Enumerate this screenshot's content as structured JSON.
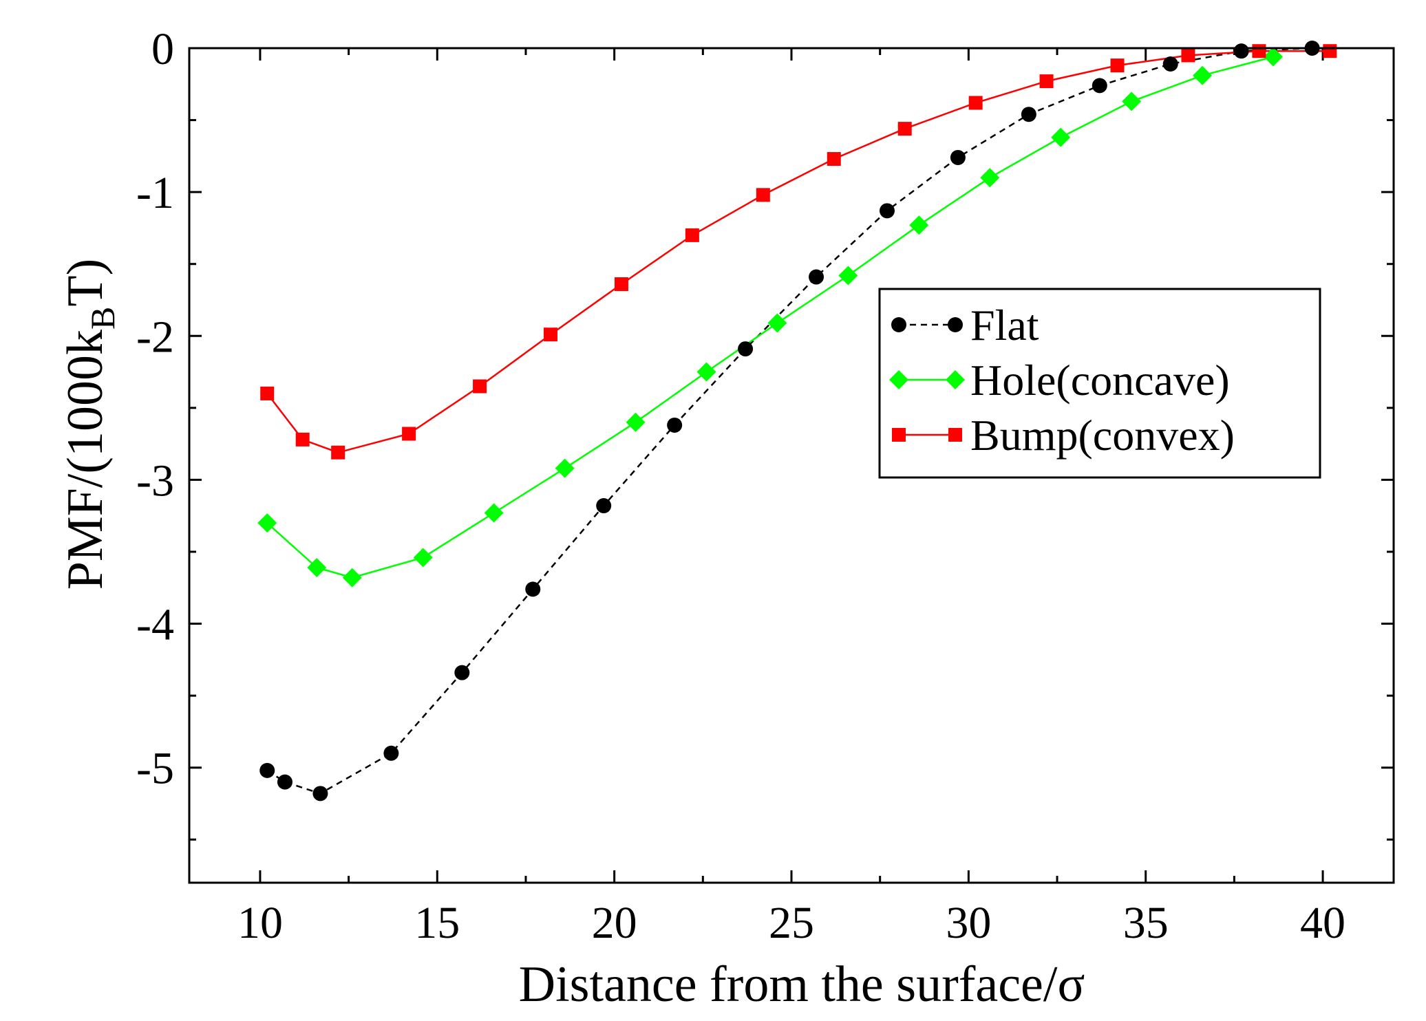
{
  "chart_data": {
    "type": "line",
    "xlabel": "Distance from the surface/σ",
    "ylabel_main": "PMF/(1000k",
    "ylabel_sub": "B",
    "ylabel_end": "T)",
    "xlim": [
      8,
      42
    ],
    "ylim": [
      -5.8,
      0
    ],
    "xticks": [
      10,
      15,
      20,
      25,
      30,
      35,
      40
    ],
    "yticks": [
      0,
      -1,
      -2,
      -3,
      -4,
      -5
    ],
    "xtick_labels": [
      "10",
      "15",
      "20",
      "25",
      "30",
      "35",
      "40"
    ],
    "ytick_labels": [
      "0",
      "-1",
      "-2",
      "-3",
      "-4",
      "-5"
    ],
    "legend_position": "right",
    "series": [
      {
        "name": "Flat",
        "color": "#000000",
        "marker": "circle",
        "line": "dashed",
        "x": [
          10.2,
          10.7,
          11.7,
          13.7,
          15.7,
          17.7,
          19.7,
          21.7,
          23.7,
          25.7,
          27.7,
          29.7,
          31.7,
          33.7,
          35.7,
          37.7,
          39.7
        ],
        "y": [
          -5.02,
          -5.1,
          -5.18,
          -4.9,
          -4.34,
          -3.76,
          -3.18,
          -2.62,
          -2.09,
          -1.59,
          -1.13,
          -0.76,
          -0.46,
          -0.26,
          -0.11,
          -0.02,
          0.0
        ]
      },
      {
        "name": "Hole(concave)",
        "color": "#00ff00",
        "marker": "diamond",
        "line": "solid",
        "x": [
          10.2,
          11.6,
          12.6,
          14.6,
          16.6,
          18.6,
          20.6,
          22.6,
          24.6,
          26.6,
          28.6,
          30.6,
          32.6,
          34.6,
          36.6,
          38.6
        ],
        "y": [
          -3.3,
          -3.61,
          -3.68,
          -3.54,
          -3.23,
          -2.92,
          -2.6,
          -2.25,
          -1.91,
          -1.58,
          -1.23,
          -0.9,
          -0.62,
          -0.37,
          -0.19,
          -0.06
        ]
      },
      {
        "name": "Bump(convex)",
        "color": "#ff0000",
        "marker": "square",
        "line": "solid",
        "x": [
          10.2,
          11.2,
          12.2,
          14.2,
          16.2,
          18.2,
          20.2,
          22.2,
          24.2,
          26.2,
          28.2,
          30.2,
          32.2,
          34.2,
          36.2,
          38.2,
          40.2
        ],
        "y": [
          -2.4,
          -2.72,
          -2.81,
          -2.68,
          -2.35,
          -1.99,
          -1.64,
          -1.3,
          -1.02,
          -0.77,
          -0.56,
          -0.38,
          -0.23,
          -0.12,
          -0.05,
          -0.02,
          -0.02
        ]
      }
    ]
  }
}
